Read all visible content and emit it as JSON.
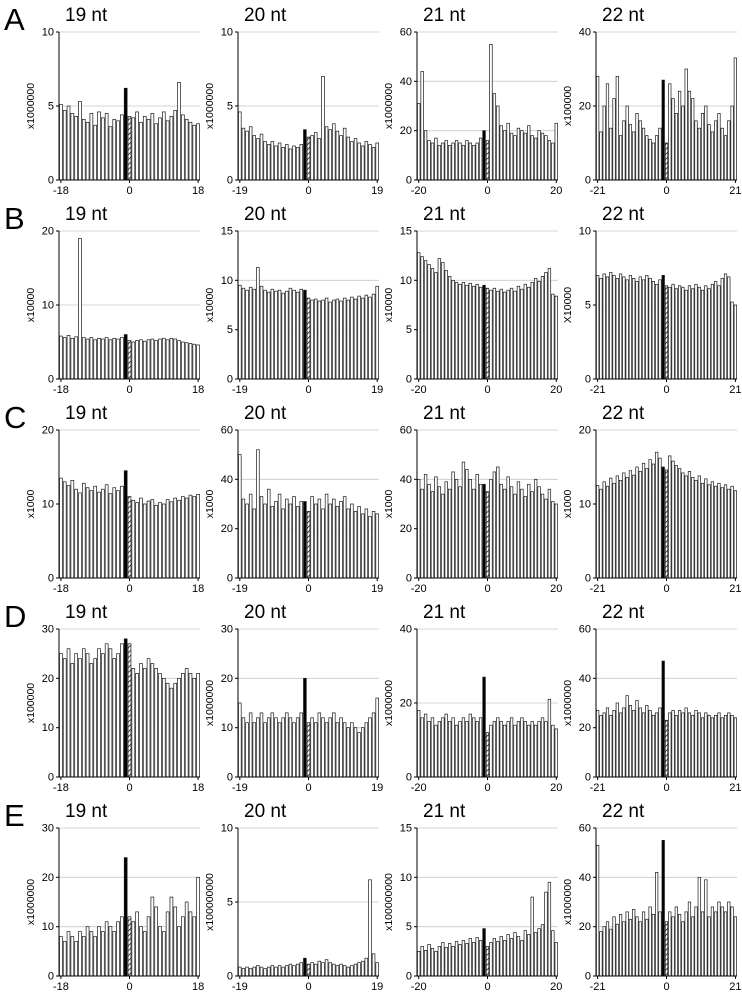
{
  "rows": [
    {
      "label": "A"
    },
    {
      "label": "B"
    },
    {
      "label": "C"
    },
    {
      "label": "D"
    },
    {
      "label": "E"
    }
  ],
  "colors": {
    "bar_fill": "#ffffff",
    "bar_stroke": "#1a1a1a",
    "black_bar": "#000000",
    "gridline": "#c9c9c9"
  },
  "chart_data": [
    {
      "type": "bar",
      "row": "A",
      "title": "19 nt",
      "ylabel": "x1000000",
      "ylim": [
        0,
        10
      ],
      "yticks": [
        0,
        5,
        10
      ],
      "x_start": -18,
      "x_end": 18,
      "xticks": [
        -18,
        0,
        18
      ],
      "black_x": -1,
      "hatched_x": 0,
      "values": [
        5.1,
        4.7,
        5.0,
        4.5,
        4.3,
        5.3,
        4.1,
        3.9,
        4.5,
        3.7,
        4.6,
        4.2,
        4.5,
        3.6,
        4.1,
        4.0,
        4.4,
        6.2,
        4.3,
        4.2,
        4.6,
        3.9,
        4.3,
        4.1,
        4.5,
        3.8,
        4.2,
        4.6,
        4.0,
        4.3,
        4.7,
        6.6,
        4.4,
        4.1,
        3.9,
        3.7,
        3.8
      ]
    },
    {
      "type": "bar",
      "row": "A",
      "title": "20 nt",
      "ylabel": "x1000000",
      "ylim": [
        0,
        10
      ],
      "yticks": [
        0,
        5,
        10
      ],
      "x_start": -19,
      "x_end": 19,
      "xticks": [
        -19,
        0,
        19
      ],
      "black_x": -1,
      "hatched_x": 0,
      "values": [
        4.6,
        3.5,
        3.3,
        3.6,
        3.0,
        2.8,
        3.1,
        2.6,
        2.4,
        2.6,
        2.3,
        2.5,
        2.2,
        2.4,
        2.1,
        2.3,
        2.2,
        2.4,
        3.4,
        2.9,
        3.0,
        3.2,
        2.8,
        7.0,
        3.6,
        3.4,
        3.8,
        3.3,
        3.0,
        3.5,
        2.9,
        2.6,
        2.8,
        2.5,
        2.3,
        2.6,
        2.4,
        2.2,
        2.5
      ]
    },
    {
      "type": "bar",
      "row": "A",
      "title": "21 nt",
      "ylabel": "x1000000",
      "ylim": [
        0,
        60
      ],
      "yticks": [
        0,
        20,
        40,
        60
      ],
      "x_start": -20,
      "x_end": 20,
      "xticks": [
        -20,
        0,
        20
      ],
      "black_x": -1,
      "hatched_x": 0,
      "values": [
        31,
        44,
        20,
        16,
        15,
        17,
        14,
        15,
        16,
        14,
        15,
        16,
        15,
        14,
        16,
        15,
        14,
        15,
        17,
        20,
        16,
        55,
        35,
        30,
        22,
        20,
        23,
        19,
        18,
        21,
        20,
        19,
        22,
        18,
        17,
        20,
        19,
        18,
        16,
        15,
        23
      ]
    },
    {
      "type": "bar",
      "row": "A",
      "title": "22 nt",
      "ylabel": "x100000",
      "ylim": [
        0,
        40
      ],
      "yticks": [
        0,
        20,
        40
      ],
      "x_start": -21,
      "x_end": 21,
      "xticks": [
        -21,
        0,
        21
      ],
      "black_x": -1,
      "hatched_x": 0,
      "values": [
        28,
        13,
        20,
        26,
        14,
        22,
        28,
        12,
        16,
        20,
        15,
        13,
        18,
        16,
        14,
        12,
        11,
        10,
        12,
        14,
        27,
        10,
        26,
        22,
        18,
        24,
        20,
        30,
        24,
        22,
        16,
        14,
        18,
        20,
        15,
        13,
        16,
        18,
        14,
        12,
        16,
        20,
        33
      ]
    },
    {
      "type": "bar",
      "row": "B",
      "title": "19 nt",
      "ylabel": "x10000",
      "ylim": [
        0,
        20
      ],
      "yticks": [
        0,
        10,
        20
      ],
      "x_start": -18,
      "x_end": 18,
      "xticks": [
        -18,
        0,
        18
      ],
      "black_x": -1,
      "hatched_x": 0,
      "values": [
        5.8,
        5.6,
        5.9,
        5.5,
        5.7,
        19,
        5.6,
        5.4,
        5.6,
        5.3,
        5.5,
        5.4,
        5.6,
        5.3,
        5.5,
        5.4,
        5.6,
        6.0,
        5.2,
        5.0,
        5.2,
        5.3,
        5.1,
        5.3,
        5.4,
        5.2,
        5.4,
        5.5,
        5.3,
        5.5,
        5.4,
        5.2,
        5.0,
        4.9,
        4.8,
        4.7,
        4.6
      ]
    },
    {
      "type": "bar",
      "row": "B",
      "title": "20 nt",
      "ylabel": "x10000",
      "ylim": [
        0,
        15
      ],
      "yticks": [
        0,
        5,
        10,
        15
      ],
      "x_start": -19,
      "x_end": 19,
      "xticks": [
        -19,
        0,
        19
      ],
      "black_x": -1,
      "hatched_x": 0,
      "values": [
        9.5,
        9.2,
        9.0,
        9.3,
        9.1,
        11.3,
        9.4,
        9.0,
        8.8,
        9.1,
        8.9,
        9.0,
        8.7,
        8.9,
        9.2,
        9.0,
        8.8,
        9.1,
        9.0,
        8.2,
        8.0,
        8.1,
        7.9,
        8.0,
        8.2,
        7.8,
        8.0,
        8.1,
        7.9,
        8.2,
        8.0,
        8.3,
        8.1,
        8.4,
        8.2,
        8.5,
        8.3,
        8.6,
        9.4
      ]
    },
    {
      "type": "bar",
      "row": "B",
      "title": "21 nt",
      "ylabel": "x10000",
      "ylim": [
        0,
        15
      ],
      "yticks": [
        0,
        5,
        10,
        15
      ],
      "x_start": -20,
      "x_end": 20,
      "xticks": [
        -20,
        0,
        20
      ],
      "black_x": -1,
      "hatched_x": 0,
      "values": [
        12.8,
        12.4,
        12.0,
        11.6,
        11.2,
        10.8,
        12.2,
        11.8,
        11.0,
        10.4,
        10.0,
        9.8,
        9.6,
        9.8,
        9.5,
        9.7,
        9.4,
        9.6,
        9.3,
        9.5,
        9.2,
        9.0,
        9.2,
        8.9,
        9.1,
        8.8,
        9.0,
        9.2,
        8.9,
        9.4,
        9.1,
        9.6,
        9.3,
        9.8,
        10.2,
        9.9,
        10.4,
        10.8,
        11.2,
        8.6,
        8.4
      ]
    },
    {
      "type": "bar",
      "row": "B",
      "title": "22 nt",
      "ylabel": "X10000",
      "ylim": [
        0,
        10
      ],
      "yticks": [
        0,
        5,
        10
      ],
      "x_start": -21,
      "x_end": 21,
      "xticks": [
        -21,
        0,
        21
      ],
      "black_x": -1,
      "hatched_x": 0,
      "values": [
        7.0,
        6.8,
        7.1,
        6.9,
        7.2,
        7.0,
        6.8,
        7.1,
        6.9,
        6.7,
        7.0,
        6.8,
        6.6,
        6.9,
        6.7,
        7.0,
        6.8,
        6.6,
        6.4,
        6.7,
        7.0,
        6.3,
        6.2,
        6.4,
        6.1,
        6.3,
        6.2,
        6.0,
        6.3,
        6.1,
        6.4,
        6.2,
        6.0,
        6.3,
        6.1,
        6.4,
        6.6,
        6.3,
        6.8,
        7.1,
        6.9,
        5.2,
        5.0
      ]
    },
    {
      "type": "bar",
      "row": "C",
      "title": "19 nt",
      "ylabel": "x1000",
      "ylim": [
        0,
        20
      ],
      "yticks": [
        0,
        10,
        20
      ],
      "x_start": -18,
      "x_end": 18,
      "xticks": [
        -18,
        0,
        18
      ],
      "black_x": -1,
      "hatched_x": 0,
      "values": [
        13.5,
        13.0,
        12.5,
        13.2,
        12.0,
        11.5,
        12.8,
        12.2,
        11.8,
        12.4,
        11.6,
        12.0,
        12.6,
        11.4,
        12.2,
        11.8,
        12.4,
        14.5,
        11.0,
        10.5,
        10.2,
        10.8,
        10.0,
        10.4,
        10.6,
        9.8,
        10.2,
        10.0,
        10.6,
        10.3,
        10.8,
        10.5,
        11.0,
        10.8,
        11.2,
        11.0,
        11.3
      ]
    },
    {
      "type": "bar",
      "row": "C",
      "title": "20 nt",
      "ylabel": "x1000",
      "ylim": [
        0,
        60
      ],
      "yticks": [
        0,
        20,
        40,
        60
      ],
      "x_start": -19,
      "x_end": 19,
      "xticks": [
        -19,
        0,
        19
      ],
      "black_x": -1,
      "hatched_x": 0,
      "values": [
        50,
        32,
        30,
        34,
        28,
        52,
        33,
        30,
        36,
        29,
        31,
        34,
        28,
        32,
        30,
        33,
        29,
        31,
        31,
        27,
        33,
        30,
        32,
        28,
        34,
        30,
        32,
        29,
        31,
        33,
        28,
        30,
        27,
        29,
        26,
        28,
        25,
        27,
        26
      ]
    },
    {
      "type": "bar",
      "row": "C",
      "title": "21 nt",
      "ylabel": "x1000",
      "ylim": [
        0,
        60
      ],
      "yticks": [
        0,
        20,
        40,
        60
      ],
      "x_start": -20,
      "x_end": 20,
      "xticks": [
        -20,
        0,
        20
      ],
      "black_x": -1,
      "hatched_x": 0,
      "values": [
        40,
        36,
        42,
        38,
        35,
        41,
        37,
        34,
        39,
        36,
        43,
        40,
        37,
        47,
        44,
        40,
        36,
        42,
        38,
        38,
        35,
        40,
        43,
        45,
        38,
        36,
        41,
        37,
        34,
        39,
        36,
        33,
        38,
        35,
        40,
        37,
        34,
        32,
        36,
        31,
        30
      ]
    },
    {
      "type": "bar",
      "row": "C",
      "title": "22 nt",
      "ylabel": "x1000",
      "ylim": [
        0,
        20
      ],
      "yticks": [
        0,
        10,
        20
      ],
      "x_start": -21,
      "x_end": 21,
      "xticks": [
        -21,
        0,
        21
      ],
      "black_x": -1,
      "hatched_x": 0,
      "values": [
        12.5,
        12.0,
        13.0,
        12.4,
        13.5,
        12.8,
        13.8,
        13.2,
        14.2,
        13.6,
        14.5,
        13.9,
        15.0,
        14.4,
        15.5,
        14.8,
        16.0,
        15.4,
        17.0,
        16.2,
        15.0,
        14.6,
        16.5,
        15.8,
        15.2,
        14.8,
        14.2,
        13.8,
        14.4,
        13.6,
        13.2,
        13.8,
        12.8,
        13.4,
        12.6,
        13.0,
        12.4,
        12.8,
        12.2,
        12.6,
        12.0,
        12.4,
        11.8
      ]
    },
    {
      "type": "bar",
      "row": "D",
      "title": "19 nt",
      "ylabel": "x100000",
      "ylim": [
        0,
        30
      ],
      "yticks": [
        0,
        10,
        20,
        30
      ],
      "x_start": -18,
      "x_end": 18,
      "xticks": [
        -18,
        0,
        18
      ],
      "black_x": -1,
      "hatched_x": 0,
      "values": [
        25,
        24,
        26,
        23,
        25,
        24,
        26,
        25,
        23,
        24,
        26,
        25,
        27,
        26,
        24,
        25,
        27,
        28,
        27,
        22,
        21,
        23,
        22,
        24,
        23,
        22,
        21,
        20,
        19,
        18,
        19,
        20,
        21,
        22,
        21,
        20,
        21
      ]
    },
    {
      "type": "bar",
      "row": "D",
      "title": "20 nt",
      "ylabel": "x1000000",
      "ylim": [
        0,
        30
      ],
      "yticks": [
        0,
        10,
        20,
        30
      ],
      "x_start": -19,
      "x_end": 19,
      "xticks": [
        -19,
        0,
        19
      ],
      "black_x": -1,
      "hatched_x": 0,
      "values": [
        15,
        12,
        11,
        13,
        11,
        12,
        13,
        11,
        12,
        13,
        12,
        11,
        12,
        13,
        12,
        11,
        12,
        13,
        20,
        11,
        12,
        11,
        13,
        12,
        11,
        12,
        13,
        11,
        12,
        11,
        10,
        11,
        10,
        9,
        10,
        11,
        12,
        13,
        16
      ]
    },
    {
      "type": "bar",
      "row": "D",
      "title": "21 nt",
      "ylabel": "x1000000",
      "ylim": [
        0,
        40
      ],
      "yticks": [
        0,
        20,
        40
      ],
      "x_start": -20,
      "x_end": 20,
      "xticks": [
        -20,
        0,
        20
      ],
      "black_x": -1,
      "hatched_x": 0,
      "values": [
        18,
        16,
        17,
        15,
        16,
        14,
        15,
        16,
        17,
        15,
        16,
        14,
        15,
        16,
        15,
        17,
        16,
        15,
        16,
        27,
        12,
        14,
        15,
        16,
        15,
        14,
        15,
        16,
        14,
        15,
        16,
        15,
        14,
        15,
        14,
        15,
        16,
        15,
        21,
        14,
        13
      ]
    },
    {
      "type": "bar",
      "row": "D",
      "title": "22 nt",
      "ylabel": "x1000000",
      "ylim": [
        0,
        60
      ],
      "yticks": [
        0,
        20,
        40,
        60
      ],
      "x_start": -21,
      "x_end": 21,
      "xticks": [
        -21,
        0,
        21
      ],
      "black_x": -1,
      "hatched_x": 0,
      "values": [
        27,
        25,
        26,
        28,
        25,
        27,
        30,
        26,
        28,
        33,
        29,
        27,
        31,
        28,
        26,
        29,
        27,
        25,
        26,
        28,
        47,
        23,
        26,
        27,
        25,
        27,
        26,
        28,
        26,
        25,
        27,
        26,
        24,
        26,
        25,
        24,
        25,
        26,
        24,
        25,
        26,
        25,
        24
      ]
    },
    {
      "type": "bar",
      "row": "E",
      "title": "19 nt",
      "ylabel": "x1000000",
      "ylim": [
        0,
        30
      ],
      "yticks": [
        0,
        10,
        20,
        30
      ],
      "x_start": -18,
      "x_end": 18,
      "xticks": [
        -18,
        0,
        18
      ],
      "black_x": -1,
      "hatched_x": 0,
      "values": [
        8,
        7,
        9,
        8,
        7,
        9,
        8,
        10,
        9,
        8,
        10,
        9,
        11,
        10,
        9,
        11,
        12,
        24,
        12,
        11,
        13,
        10,
        9,
        12,
        16,
        14,
        10,
        9,
        13,
        16,
        14,
        10,
        12,
        15,
        13,
        12,
        20
      ]
    },
    {
      "type": "bar",
      "row": "E",
      "title": "20 nt",
      "ylabel": "x100000000",
      "ylim": [
        0,
        10
      ],
      "yticks": [
        0,
        5,
        10
      ],
      "x_start": -19,
      "x_end": 19,
      "xticks": [
        -19,
        0,
        19
      ],
      "black_x": -1,
      "hatched_x": 0,
      "values": [
        0.6,
        0.5,
        0.6,
        0.5,
        0.6,
        0.7,
        0.6,
        0.5,
        0.6,
        0.7,
        0.6,
        0.7,
        0.6,
        0.7,
        0.8,
        0.7,
        0.8,
        0.9,
        1.2,
        0.8,
        0.9,
        0.8,
        1.0,
        0.9,
        1.1,
        0.9,
        0.8,
        0.7,
        0.8,
        0.7,
        0.6,
        0.7,
        0.8,
        0.9,
        1.0,
        1.2,
        6.5,
        1.5,
        0.9
      ]
    },
    {
      "type": "bar",
      "row": "E",
      "title": "21 nt",
      "ylabel": "x100000000",
      "ylim": [
        0,
        15
      ],
      "yticks": [
        0,
        5,
        10,
        15
      ],
      "x_start": -20,
      "x_end": 20,
      "xticks": [
        -20,
        0,
        20
      ],
      "black_x": -1,
      "hatched_x": 0,
      "values": [
        2.5,
        3.0,
        2.6,
        3.2,
        2.8,
        2.5,
        3.0,
        3.4,
        2.9,
        3.3,
        3.0,
        3.5,
        3.2,
        3.6,
        3.3,
        3.8,
        3.4,
        3.9,
        3.6,
        4.8,
        3.0,
        3.4,
        3.8,
        3.5,
        4.0,
        3.6,
        4.2,
        3.8,
        4.4,
        4.0,
        3.6,
        4.6,
        4.2,
        8.0,
        4.4,
        4.8,
        5.2,
        8.5,
        9.5,
        4.6,
        3.4
      ]
    },
    {
      "type": "bar",
      "row": "E",
      "title": "22 nt",
      "ylabel": "x1000000",
      "ylim": [
        0,
        60
      ],
      "yticks": [
        0,
        20,
        40,
        60
      ],
      "x_start": -21,
      "x_end": 21,
      "xticks": [
        -21,
        0,
        21
      ],
      "black_x": -1,
      "hatched_x": 0,
      "values": [
        53,
        18,
        20,
        22,
        19,
        24,
        21,
        25,
        22,
        26,
        23,
        27,
        24,
        22,
        26,
        23,
        28,
        25,
        42,
        26,
        55,
        22,
        26,
        24,
        28,
        25,
        22,
        26,
        30,
        24,
        28,
        40,
        26,
        39,
        24,
        28,
        26,
        30,
        28,
        26,
        30,
        28,
        24
      ]
    }
  ]
}
